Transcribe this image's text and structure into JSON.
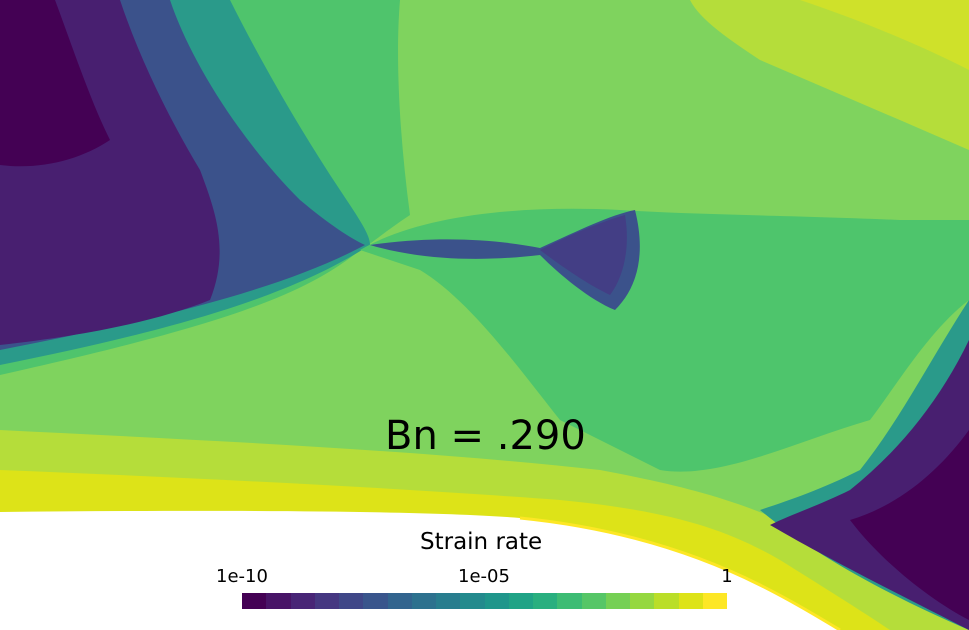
{
  "annotation": "Bn = .290",
  "colorbar": {
    "title": "Strain rate",
    "ticks": [
      "1e-10",
      "1e-05",
      "1"
    ],
    "scale": "log",
    "range": [
      1e-10,
      1
    ],
    "colors": [
      "#440154",
      "#481467",
      "#482576",
      "#453781",
      "#3f4788",
      "#39558c",
      "#32648e",
      "#2d718e",
      "#287d8e",
      "#238a8d",
      "#1f968b",
      "#20a386",
      "#29af7f",
      "#3dbc74",
      "#56c667",
      "#75d054",
      "#95d840",
      "#bade28",
      "#dde318",
      "#fde725"
    ]
  },
  "field_colors": {
    "white": "#ffffff",
    "darkest": "#440154",
    "dark_purple": "#481f70",
    "purple_blue": "#3b528b",
    "teal": "#2a9a8a",
    "mid_green": "#3dbc74",
    "green": "#60c96a",
    "light_green": "#7fd35e",
    "yellow_green": "#b5dd3a",
    "yellow": "#e9e62a"
  }
}
